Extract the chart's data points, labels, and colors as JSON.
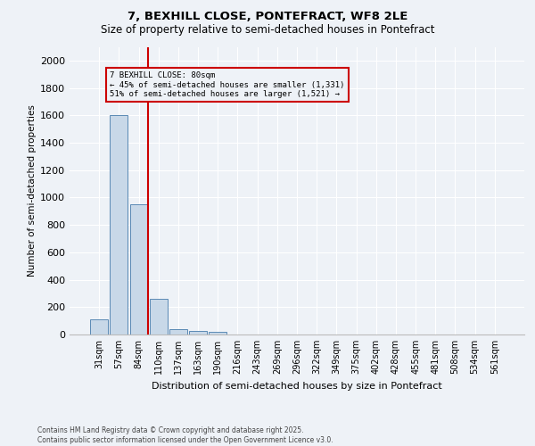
{
  "title1": "7, BEXHILL CLOSE, PONTEFRACT, WF8 2LE",
  "title2": "Size of property relative to semi-detached houses in Pontefract",
  "xlabel": "Distribution of semi-detached houses by size in Pontefract",
  "ylabel": "Number of semi-detached properties",
  "footnote1": "Contains HM Land Registry data © Crown copyright and database right 2025.",
  "footnote2": "Contains public sector information licensed under the Open Government Licence v3.0.",
  "bar_labels": [
    "31sqm",
    "57sqm",
    "84sqm",
    "110sqm",
    "137sqm",
    "163sqm",
    "190sqm",
    "216sqm",
    "243sqm",
    "269sqm",
    "296sqm",
    "322sqm",
    "349sqm",
    "375sqm",
    "402sqm",
    "428sqm",
    "455sqm",
    "481sqm",
    "508sqm",
    "534sqm",
    "561sqm"
  ],
  "bar_values": [
    110,
    1600,
    950,
    260,
    40,
    25,
    20,
    0,
    0,
    0,
    0,
    0,
    0,
    0,
    0,
    0,
    0,
    0,
    0,
    0,
    0
  ],
  "bar_color": "#c8d8e8",
  "bar_edge_color": "#5b8ab5",
  "red_line_index": 2,
  "red_line_color": "#cc0000",
  "annotation_title": "7 BEXHILL CLOSE: 80sqm",
  "annotation_line1": "← 45% of semi-detached houses are smaller (1,331)",
  "annotation_line2": "51% of semi-detached houses are larger (1,521) →",
  "annotation_box_color": "#cc0000",
  "ylim": [
    0,
    2100
  ],
  "yticks": [
    0,
    200,
    400,
    600,
    800,
    1000,
    1200,
    1400,
    1600,
    1800,
    2000
  ],
  "background_color": "#eef2f7",
  "grid_color": "#ffffff",
  "title1_fontsize": 9.5,
  "title2_fontsize": 8.5,
  "ylabel_fontsize": 7.5,
  "xlabel_fontsize": 8,
  "ytick_fontsize": 8,
  "xtick_fontsize": 7,
  "footnote_fontsize": 5.5
}
